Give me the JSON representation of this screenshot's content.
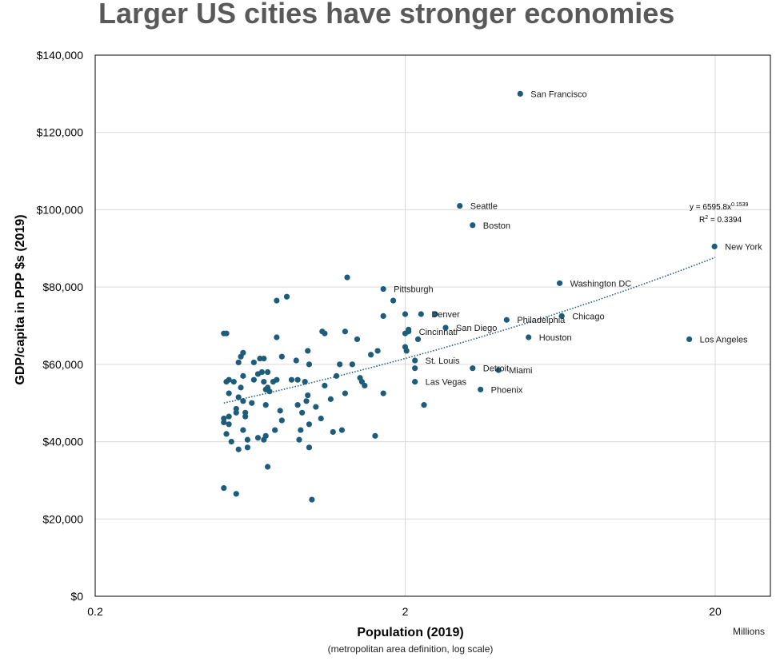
{
  "chart_data": {
    "type": "scatter",
    "title": "Larger US cities have stronger economies",
    "xlabel": "Population (2019)",
    "xlabel_sub": "(metropolitan area definition, log scale)",
    "x_units_label": "Millions",
    "ylabel": "GDP/capita in PPP $s (2019)",
    "x_scale": "log",
    "xlim": [
      0.2,
      30
    ],
    "ylim": [
      0,
      140000
    ],
    "x_ticks": [
      0.2,
      2,
      20
    ],
    "x_tick_labels": [
      "0.2",
      "2",
      "20"
    ],
    "y_ticks": [
      0,
      20000,
      40000,
      60000,
      80000,
      100000,
      120000,
      140000
    ],
    "y_tick_labels": [
      "$0",
      "$20,000",
      "$40,000",
      "$60,000",
      "$80,000",
      "$100,000",
      "$120,000",
      "$140,000"
    ],
    "trendline": {
      "type": "power",
      "a": 6595.8,
      "b": 0.1539,
      "x_range": [
        0.52,
        20
      ],
      "equation_label": "y = 6595.8x",
      "equation_exponent": "0.1539",
      "r2_label": "R",
      "r2_sup": "2",
      "r2_value": " = 0.3394"
    },
    "labeled_points": [
      {
        "name": "San Francisco",
        "x": 4.7,
        "y": 130000
      },
      {
        "name": "Seattle",
        "x": 3.0,
        "y": 101000
      },
      {
        "name": "Boston",
        "x": 3.3,
        "y": 96000
      },
      {
        "name": "New York",
        "x": 19.9,
        "y": 90500
      },
      {
        "name": "Washington DC",
        "x": 6.3,
        "y": 81000
      },
      {
        "name": "Pittsburgh",
        "x": 1.7,
        "y": 79500
      },
      {
        "name": "Denver",
        "x": 2.25,
        "y": 73000
      },
      {
        "name": "Chicago",
        "x": 6.4,
        "y": 72500
      },
      {
        "name": "Philadelphia",
        "x": 4.25,
        "y": 71500
      },
      {
        "name": "Cincinnati",
        "x": 2.05,
        "y": 68500
      },
      {
        "name": "San Diego",
        "x": 2.7,
        "y": 69500
      },
      {
        "name": "Houston",
        "x": 5.0,
        "y": 67000
      },
      {
        "name": "Los Angeles",
        "x": 16.5,
        "y": 66500
      },
      {
        "name": "St. Louis",
        "x": 2.15,
        "y": 61000
      },
      {
        "name": "Detroit",
        "x": 3.3,
        "y": 59000
      },
      {
        "name": "Miami",
        "x": 4.0,
        "y": 58500
      },
      {
        "name": "Las Vegas",
        "x": 2.15,
        "y": 55500
      },
      {
        "name": "Phoenix",
        "x": 3.5,
        "y": 53500
      }
    ],
    "unlabeled_points": [
      [
        0.52,
        68000
      ],
      [
        0.53,
        68000
      ],
      [
        0.52,
        46000
      ],
      [
        0.52,
        45000
      ],
      [
        0.53,
        55500
      ],
      [
        0.54,
        56000
      ],
      [
        0.54,
        52500
      ],
      [
        0.54,
        46500
      ],
      [
        0.53,
        42000
      ],
      [
        0.55,
        40000
      ],
      [
        0.54,
        44500
      ],
      [
        0.52,
        28000
      ],
      [
        0.57,
        26500
      ],
      [
        0.56,
        55500
      ],
      [
        0.57,
        48500
      ],
      [
        0.57,
        47500
      ],
      [
        0.58,
        51500
      ],
      [
        0.58,
        38000
      ],
      [
        0.58,
        60500
      ],
      [
        0.59,
        62000
      ],
      [
        0.6,
        63000
      ],
      [
        0.6,
        57000
      ],
      [
        0.59,
        54000
      ],
      [
        0.6,
        50500
      ],
      [
        0.61,
        46500
      ],
      [
        0.6,
        43000
      ],
      [
        0.61,
        47500
      ],
      [
        0.62,
        40500
      ],
      [
        0.62,
        38500
      ],
      [
        0.64,
        50000
      ],
      [
        0.65,
        56000
      ],
      [
        0.65,
        60500
      ],
      [
        0.67,
        57500
      ],
      [
        0.67,
        41000
      ],
      [
        0.68,
        61500
      ],
      [
        0.69,
        58000
      ],
      [
        0.7,
        61500
      ],
      [
        0.7,
        55500
      ],
      [
        0.7,
        40500
      ],
      [
        0.71,
        53500
      ],
      [
        0.72,
        54000
      ],
      [
        0.71,
        49500
      ],
      [
        0.71,
        41500
      ],
      [
        0.72,
        58000
      ],
      [
        0.73,
        53000
      ],
      [
        0.72,
        33500
      ],
      [
        0.75,
        55500
      ],
      [
        0.77,
        76500
      ],
      [
        0.77,
        67000
      ],
      [
        0.76,
        43000
      ],
      [
        0.77,
        56000
      ],
      [
        0.79,
        48000
      ],
      [
        0.8,
        45500
      ],
      [
        0.8,
        62000
      ],
      [
        0.83,
        77500
      ],
      [
        0.86,
        56000
      ],
      [
        0.89,
        61000
      ],
      [
        0.9,
        56000
      ],
      [
        0.9,
        49500
      ],
      [
        0.91,
        40500
      ],
      [
        0.92,
        43000
      ],
      [
        0.93,
        47500
      ],
      [
        0.95,
        55500
      ],
      [
        0.96,
        50500
      ],
      [
        0.97,
        52000
      ],
      [
        0.97,
        63500
      ],
      [
        0.98,
        44500
      ],
      [
        0.98,
        38500
      ],
      [
        0.98,
        60000
      ],
      [
        1.0,
        25000
      ],
      [
        1.03,
        49000
      ],
      [
        1.07,
        46000
      ],
      [
        1.08,
        68500
      ],
      [
        1.1,
        68000
      ],
      [
        1.1,
        54500
      ],
      [
        1.15,
        51000
      ],
      [
        1.17,
        42500
      ],
      [
        1.2,
        57000
      ],
      [
        1.23,
        60000
      ],
      [
        1.25,
        43000
      ],
      [
        1.28,
        68500
      ],
      [
        1.28,
        52500
      ],
      [
        1.3,
        82500
      ],
      [
        1.35,
        60000
      ],
      [
        1.4,
        66500
      ],
      [
        1.43,
        56500
      ],
      [
        1.45,
        55500
      ],
      [
        1.48,
        54500
      ],
      [
        1.55,
        62500
      ],
      [
        1.6,
        41500
      ],
      [
        1.63,
        63500
      ],
      [
        1.7,
        52500
      ],
      [
        1.7,
        72500
      ],
      [
        1.83,
        76500
      ],
      [
        2.0,
        73000
      ],
      [
        2.0,
        68000
      ],
      [
        2.0,
        64500
      ],
      [
        2.02,
        63500
      ],
      [
        2.05,
        69000
      ],
      [
        2.2,
        66500
      ],
      [
        2.15,
        59000
      ],
      [
        2.3,
        49500
      ],
      [
        2.5,
        73000
      ]
    ]
  }
}
